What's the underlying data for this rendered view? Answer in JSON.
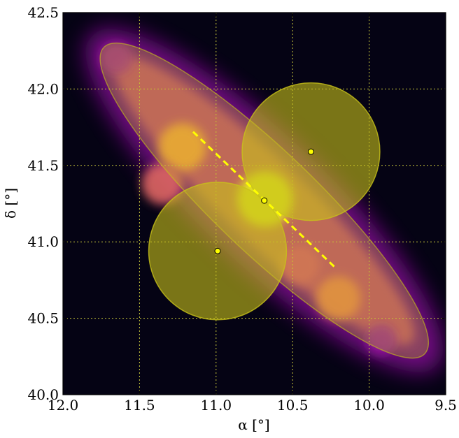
{
  "chart_data": {
    "type": "heatmap",
    "title": "",
    "xlabel": "α [°]",
    "ylabel": "δ [°]",
    "xlim": [
      12.0,
      9.5
    ],
    "ylim": [
      40.0,
      42.5
    ],
    "x_ticks": [
      "12.0",
      "11.5",
      "11.0",
      "10.5",
      "10.0",
      "9.5"
    ],
    "y_ticks": [
      "40.0",
      "40.5",
      "41.0",
      "41.5",
      "42.0",
      "42.5"
    ],
    "grid": true,
    "colormap": "plasma",
    "background_color": "#050314",
    "overlay_color": "#c8c219",
    "galaxy_ellipse": {
      "center": [
        10.685,
        41.27
      ],
      "semi_major_deg": 1.45,
      "semi_minor_deg": 0.33,
      "orientation": "NE-SW"
    },
    "major_axis_line": {
      "from": [
        11.15,
        41.72
      ],
      "to": [
        10.22,
        40.83
      ]
    },
    "center_point": [
      10.685,
      41.27
    ],
    "satellite_regions": [
      {
        "center": [
          10.38,
          41.59
        ],
        "radius_deg": 0.45
      },
      {
        "center": [
          10.99,
          40.94
        ],
        "radius_deg": 0.45
      }
    ],
    "emission_blobs": [
      {
        "ra": 10.68,
        "dec": 41.28,
        "peak": 1.0
      },
      {
        "ra": 11.22,
        "dec": 41.62,
        "peak": 0.78
      },
      {
        "ra": 11.35,
        "dec": 41.38,
        "peak": 0.6
      },
      {
        "ra": 10.2,
        "dec": 40.63,
        "peak": 0.68
      },
      {
        "ra": 10.45,
        "dec": 40.85,
        "peak": 0.55
      },
      {
        "ra": 11.65,
        "dec": 42.2,
        "peak": 0.35
      },
      {
        "ra": 9.92,
        "dec": 40.36,
        "peak": 0.32
      }
    ]
  }
}
